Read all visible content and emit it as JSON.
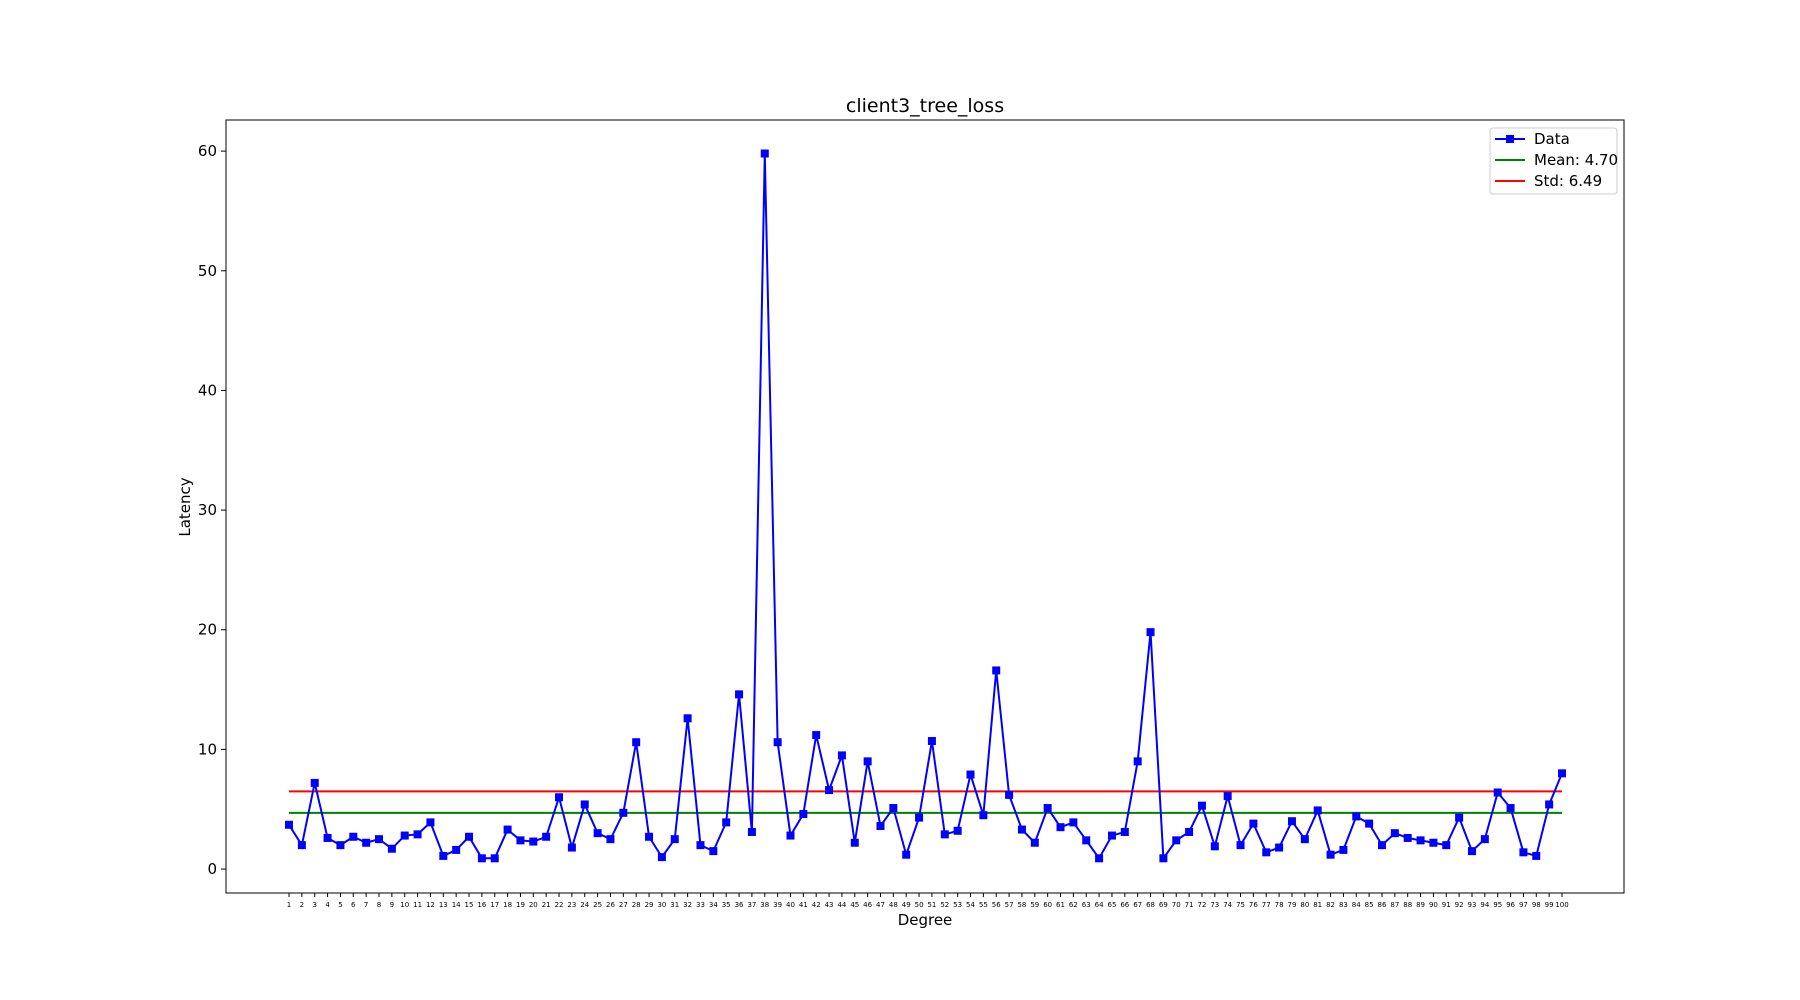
{
  "chart_data": {
    "type": "line",
    "title": "client3_tree_loss",
    "xlabel": "Degree",
    "ylabel": "Latency",
    "ylim": [
      -2,
      62.6
    ],
    "yticks": [
      0,
      10,
      20,
      30,
      40,
      50,
      60
    ],
    "grid": false,
    "legend_placement": "top-right",
    "categories": [
      "1",
      "2",
      "3",
      "4",
      "5",
      "6",
      "7",
      "8",
      "9",
      "10",
      "11",
      "12",
      "13",
      "14",
      "15",
      "16",
      "17",
      "18",
      "19",
      "20",
      "21",
      "22",
      "23",
      "24",
      "25",
      "26",
      "27",
      "28",
      "29",
      "30",
      "31",
      "32",
      "33",
      "34",
      "35",
      "36",
      "37",
      "38",
      "39",
      "40",
      "41",
      "42",
      "43",
      "44",
      "45",
      "46",
      "47",
      "48",
      "49",
      "50",
      "51",
      "52",
      "53",
      "54",
      "55",
      "56",
      "57",
      "58",
      "59",
      "60",
      "61",
      "62",
      "63",
      "64",
      "65",
      "66",
      "67",
      "68",
      "69",
      "70",
      "71",
      "72",
      "73",
      "74",
      "75",
      "76",
      "77",
      "78",
      "79",
      "80",
      "81",
      "82",
      "83",
      "84",
      "85",
      "86",
      "87",
      "88",
      "89",
      "90",
      "91",
      "92",
      "93",
      "94",
      "95",
      "96",
      "97",
      "98",
      "99",
      "100"
    ],
    "series": [
      {
        "name": "Data",
        "color": "#0000ff",
        "values": [
          3.7,
          2.0,
          7.2,
          2.6,
          2.0,
          2.7,
          2.2,
          2.5,
          1.7,
          2.8,
          2.9,
          3.9,
          1.1,
          1.6,
          2.7,
          0.9,
          0.9,
          3.3,
          2.4,
          2.3,
          2.7,
          6.0,
          1.8,
          5.4,
          3.0,
          2.5,
          4.7,
          10.6,
          2.7,
          1.0,
          2.5,
          12.6,
          2.0,
          1.5,
          3.9,
          14.6,
          3.1,
          59.8,
          10.6,
          2.8,
          4.6,
          11.2,
          6.6,
          9.5,
          2.2,
          9.0,
          3.6,
          5.1,
          1.2,
          4.3,
          10.7,
          2.9,
          3.2,
          7.9,
          4.5,
          16.6,
          6.2,
          3.3,
          2.2,
          5.1,
          3.5,
          3.9,
          2.4,
          0.9,
          2.8,
          3.1,
          9.0,
          19.8,
          0.9,
          2.4,
          3.1,
          5.3,
          1.9,
          6.1,
          2.0,
          3.8,
          1.4,
          1.8,
          4.0,
          2.5,
          4.9,
          1.2,
          1.6,
          4.4,
          3.8,
          2.0,
          3.0,
          2.6,
          2.4,
          2.2,
          2.0,
          4.3,
          1.5,
          2.5,
          6.4,
          5.1,
          1.4,
          1.1,
          5.4,
          8.0
        ]
      },
      {
        "name": "Mean: 4.70",
        "color": "#008000",
        "value": 4.7
      },
      {
        "name": "Std: 6.49",
        "color": "#ff0000",
        "value": 6.49
      }
    ]
  }
}
